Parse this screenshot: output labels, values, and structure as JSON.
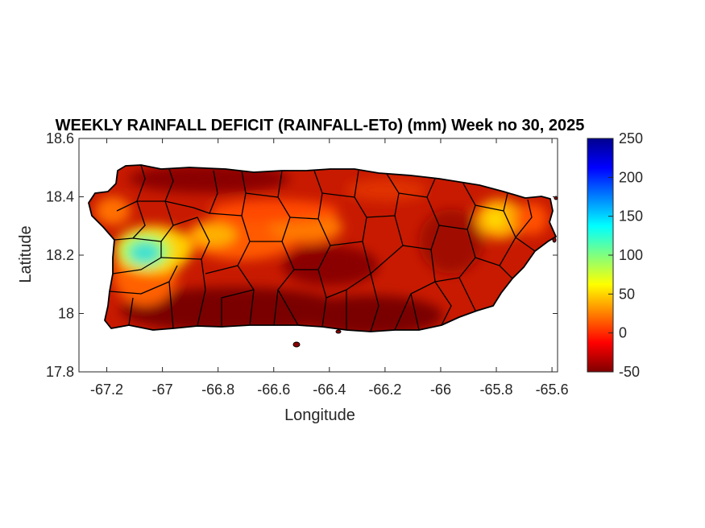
{
  "title": "WEEKLY RAINFALL DEFICIT (RAINFALL-ETo) (mm) Week no 30, 2025",
  "axes": {
    "xlabel": "Longitude",
    "ylabel": "Latitude",
    "xlim": [
      -67.3,
      -65.58
    ],
    "ylim": [
      17.8,
      18.6
    ],
    "xticks": [
      "-67.2",
      "-67",
      "-66.8",
      "-66.6",
      "-66.4",
      "-66.2",
      "-66",
      "-65.8",
      "-65.6"
    ],
    "yticks": [
      "18.6",
      "18.4",
      "18.2",
      "18",
      "17.8"
    ]
  },
  "colorbar": {
    "min": -50,
    "max": 250,
    "ticks": [
      "250",
      "200",
      "150",
      "100",
      "50",
      "0",
      "-50"
    ],
    "colormap": "jet"
  },
  "map": {
    "region": "Puerto Rico",
    "base_color": "#c01400",
    "dry_color": "#7a0000",
    "wet_color": "#38d8c8"
  }
}
